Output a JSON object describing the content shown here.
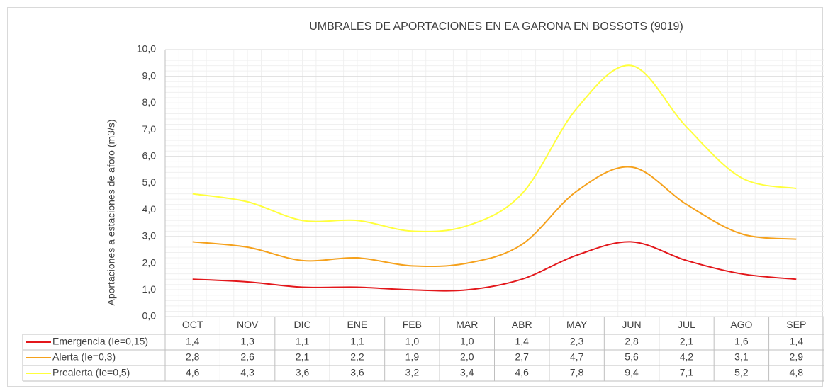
{
  "chart_data": {
    "type": "line",
    "title": "UMBRALES DE APORTACIONES EN EA GARONA EN BOSSOTS (9019)",
    "y_label": "Aportaciones a estaciones de aforo (m3/s)",
    "categories": [
      "OCT",
      "NOV",
      "DIC",
      "ENE",
      "FEB",
      "MAR",
      "ABR",
      "MAY",
      "JUN",
      "JUL",
      "AGO",
      "SEP"
    ],
    "series": [
      {
        "name": "Emergencia (Ie=0,15)",
        "color": "#e3171b",
        "values": [
          1.4,
          1.3,
          1.1,
          1.1,
          1.0,
          1.0,
          1.4,
          2.3,
          2.8,
          2.1,
          1.6,
          1.4
        ],
        "value_labels": [
          "1,4",
          "1,3",
          "1,1",
          "1,1",
          "1,0",
          "1,0",
          "1,4",
          "2,3",
          "2,8",
          "2,1",
          "1,6",
          "1,4"
        ]
      },
      {
        "name": "Alerta (Ie=0,3)",
        "color": "#f5a11c",
        "values": [
          2.8,
          2.6,
          2.1,
          2.2,
          1.9,
          2.0,
          2.7,
          4.7,
          5.6,
          4.2,
          3.1,
          2.9
        ],
        "value_labels": [
          "2,8",
          "2,6",
          "2,1",
          "2,2",
          "1,9",
          "2,0",
          "2,7",
          "4,7",
          "5,6",
          "4,2",
          "3,1",
          "2,9"
        ]
      },
      {
        "name": "Prealerta (Ie=0,5)",
        "color": "#ffff3c",
        "values": [
          4.6,
          4.3,
          3.6,
          3.6,
          3.2,
          3.4,
          4.6,
          7.8,
          9.4,
          7.1,
          5.2,
          4.8
        ],
        "value_labels": [
          "4,6",
          "4,3",
          "3,6",
          "3,6",
          "3,2",
          "3,4",
          "4,6",
          "7,8",
          "9,4",
          "7,1",
          "5,2",
          "4,8"
        ]
      }
    ],
    "ylim": [
      0,
      10
    ],
    "yticks": [
      {
        "value": 0,
        "label": "0,0"
      },
      {
        "value": 1,
        "label": "1,0"
      },
      {
        "value": 2,
        "label": "2,0"
      },
      {
        "value": 3,
        "label": "3,0"
      },
      {
        "value": 4,
        "label": "4,0"
      },
      {
        "value": 5,
        "label": "5,0"
      },
      {
        "value": 6,
        "label": "6,0"
      },
      {
        "value": 7,
        "label": "7,0"
      },
      {
        "value": 8,
        "label": "8,0"
      },
      {
        "value": 9,
        "label": "9,0"
      },
      {
        "value": 10,
        "label": "10,0"
      }
    ],
    "grid": true
  }
}
